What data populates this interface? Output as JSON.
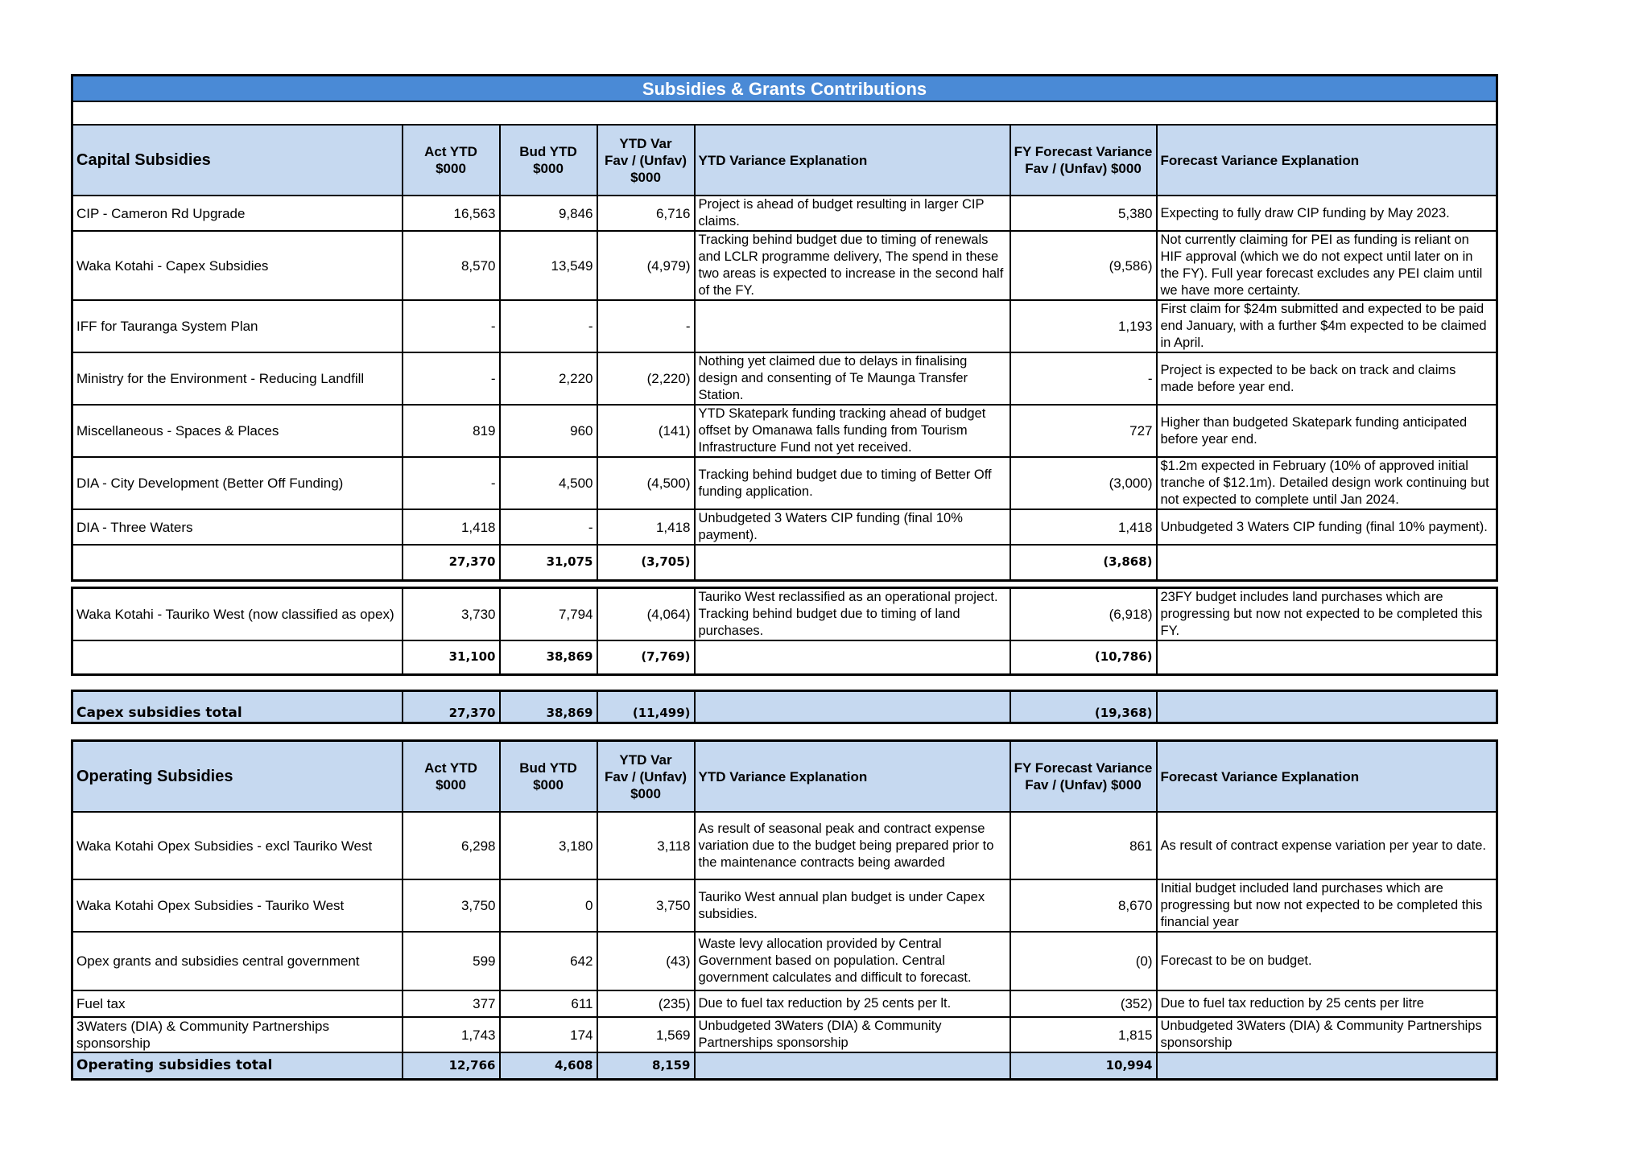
{
  "title": "Subsidies & Grants Contributions",
  "headers": {
    "act": [
      "Act YTD",
      "$000"
    ],
    "bud": [
      "Bud YTD",
      "$000"
    ],
    "var": [
      "YTD Var",
      "Fav / (Unfav)",
      "$000"
    ],
    "expl": "YTD Variance Explanation",
    "fy": [
      "FY Forecast Variance",
      "Fav / (Unfav)    $000"
    ],
    "fexpl": "Forecast Variance Explanation"
  },
  "capital": {
    "section_title": "Capital Subsidies",
    "rows": [
      {
        "name": "CIP - Cameron Rd Upgrade",
        "act": "16,563",
        "bud": "9,846",
        "var": "6,716",
        "expl": "Project is ahead of budget resulting in larger CIP claims.",
        "fy": "5,380",
        "fexpl": "Expecting to fully draw CIP funding by May 2023."
      },
      {
        "name": "Waka Kotahi - Capex Subsidies",
        "act": "8,570",
        "bud": "13,549",
        "var": "(4,979)",
        "expl": "Tracking behind budget due to timing of renewals and LCLR programme delivery, The spend in these two areas is expected to increase in the second half of the FY.",
        "fy": "(9,586)",
        "fexpl": "Not currently claiming for PEI as funding is reliant on HIF approval (which we do not expect until later on in the FY).  Full year forecast excludes any PEI claim until we have more certainty."
      },
      {
        "name": "IFF for Tauranga System Plan",
        "act": "-",
        "bud": "-",
        "var": "-",
        "expl": "",
        "fy": "1,193",
        "fexpl": "First claim for $24m submitted and expected to be paid end January, with a further $4m expected to be claimed in April."
      },
      {
        "name": "Ministry for the Environment - Reducing Landfill",
        "act": "-",
        "bud": "2,220",
        "var": "(2,220)",
        "expl": "Nothing yet claimed due to delays in finalising design and consenting of Te Maunga Transfer Station.",
        "fy": "-",
        "fexpl": "Project is expected to be back on track and claims made before year end."
      },
      {
        "name": "Miscellaneous - Spaces & Places",
        "act": "819",
        "bud": "960",
        "var": "(141)",
        "expl": "YTD Skatepark funding tracking ahead of budget offset by Omanawa falls funding from Tourism Infrastructure Fund not yet received.",
        "fy": "727",
        "fexpl": "Higher than budgeted Skatepark funding anticipated before year end."
      },
      {
        "name": "DIA - City Development (Better Off Funding)",
        "act": "-",
        "bud": "4,500",
        "var": "(4,500)",
        "expl": "Tracking behind budget due to timing of Better Off funding application.",
        "fy": "(3,000)",
        "fexpl": "$1.2m expected in February (10% of approved initial tranche of $12.1m). Detailed design work continuing but not expected to complete until Jan 2024."
      },
      {
        "name": "DIA - Three Waters",
        "act": "1,418",
        "bud": "-",
        "var": "1,418",
        "expl": "Unbudgeted 3 Waters CIP funding (final 10% payment).",
        "fy": "1,418",
        "fexpl": "Unbudgeted 3 Waters CIP funding (final 10% payment)."
      }
    ],
    "total": {
      "act": "27,370",
      "bud": "31,075",
      "var": "(3,705)",
      "fy": "(3,868)"
    }
  },
  "tauriko": {
    "row": {
      "name": "Waka Kotahi - Tauriko West (now classified as opex)",
      "act": "3,730",
      "bud": "7,794",
      "var": "(4,064)",
      "expl": "Tauriko West reclassified as an operational project. Tracking behind budget due to timing of land purchases.",
      "fy": "(6,918)",
      "fexpl": "23FY budget includes land purchases which are progressing but now not expected to be completed this FY."
    },
    "total": {
      "act": "31,100",
      "bud": "38,869",
      "var": "(7,769)",
      "fy": "(10,786)"
    }
  },
  "capex_total": {
    "label": "Capex subsidies total",
    "act": "27,370",
    "bud": "38,869",
    "var": "(11,499)",
    "fy": "(19,368)"
  },
  "operating": {
    "section_title": "Operating Subsidies",
    "rows": [
      {
        "name": "Waka Kotahi Opex Subsidies  - excl Tauriko West",
        "act": "6,298",
        "bud": "3,180",
        "var": "3,118",
        "expl": "As result of seasonal peak and contract expense variation due to the budget being prepared prior to the maintenance contracts being awarded",
        "fy": "861",
        "fexpl": "As result of contract expense variation per year to date."
      },
      {
        "name": "Waka Kotahi Opex Subsidies - Tauriko West",
        "act": "3,750",
        "bud": "0",
        "var": "3,750",
        "expl": "Tauriko West annual plan budget is under Capex subsidies.",
        "fy": "8,670",
        "fexpl": "Initial budget included land purchases which are progressing but now not expected to be completed this financial year"
      },
      {
        "name": "Opex grants and subsidies central government",
        "act": "599",
        "bud": "642",
        "var": "(43)",
        "expl": "Waste levy allocation provided by Central Government based on population.  Central government calculates and difficult to forecast.",
        "fy": "(0)",
        "fexpl": "Forecast to be on budget."
      },
      {
        "name": "Fuel tax",
        "act": "377",
        "bud": "611",
        "var": "(235)",
        "expl": "Due to fuel tax reduction by 25 cents per lt.",
        "fy": "(352)",
        "fexpl": "Due to fuel tax reduction by 25 cents per litre"
      },
      {
        "name": "3Waters (DIA) & Community Partnerships sponsorship",
        "act": "1,743",
        "bud": "174",
        "var": "1,569",
        "expl": "Unbudgeted 3Waters (DIA) & Community Partnerships sponsorship",
        "fy": "1,815",
        "fexpl": "Unbudgeted 3Waters (DIA) & Community Partnerships sponsorship"
      }
    ],
    "total": {
      "label": "Operating subsidies total",
      "act": "12,766",
      "bud": "4,608",
      "var": "8,159",
      "fy": "10,994"
    }
  }
}
